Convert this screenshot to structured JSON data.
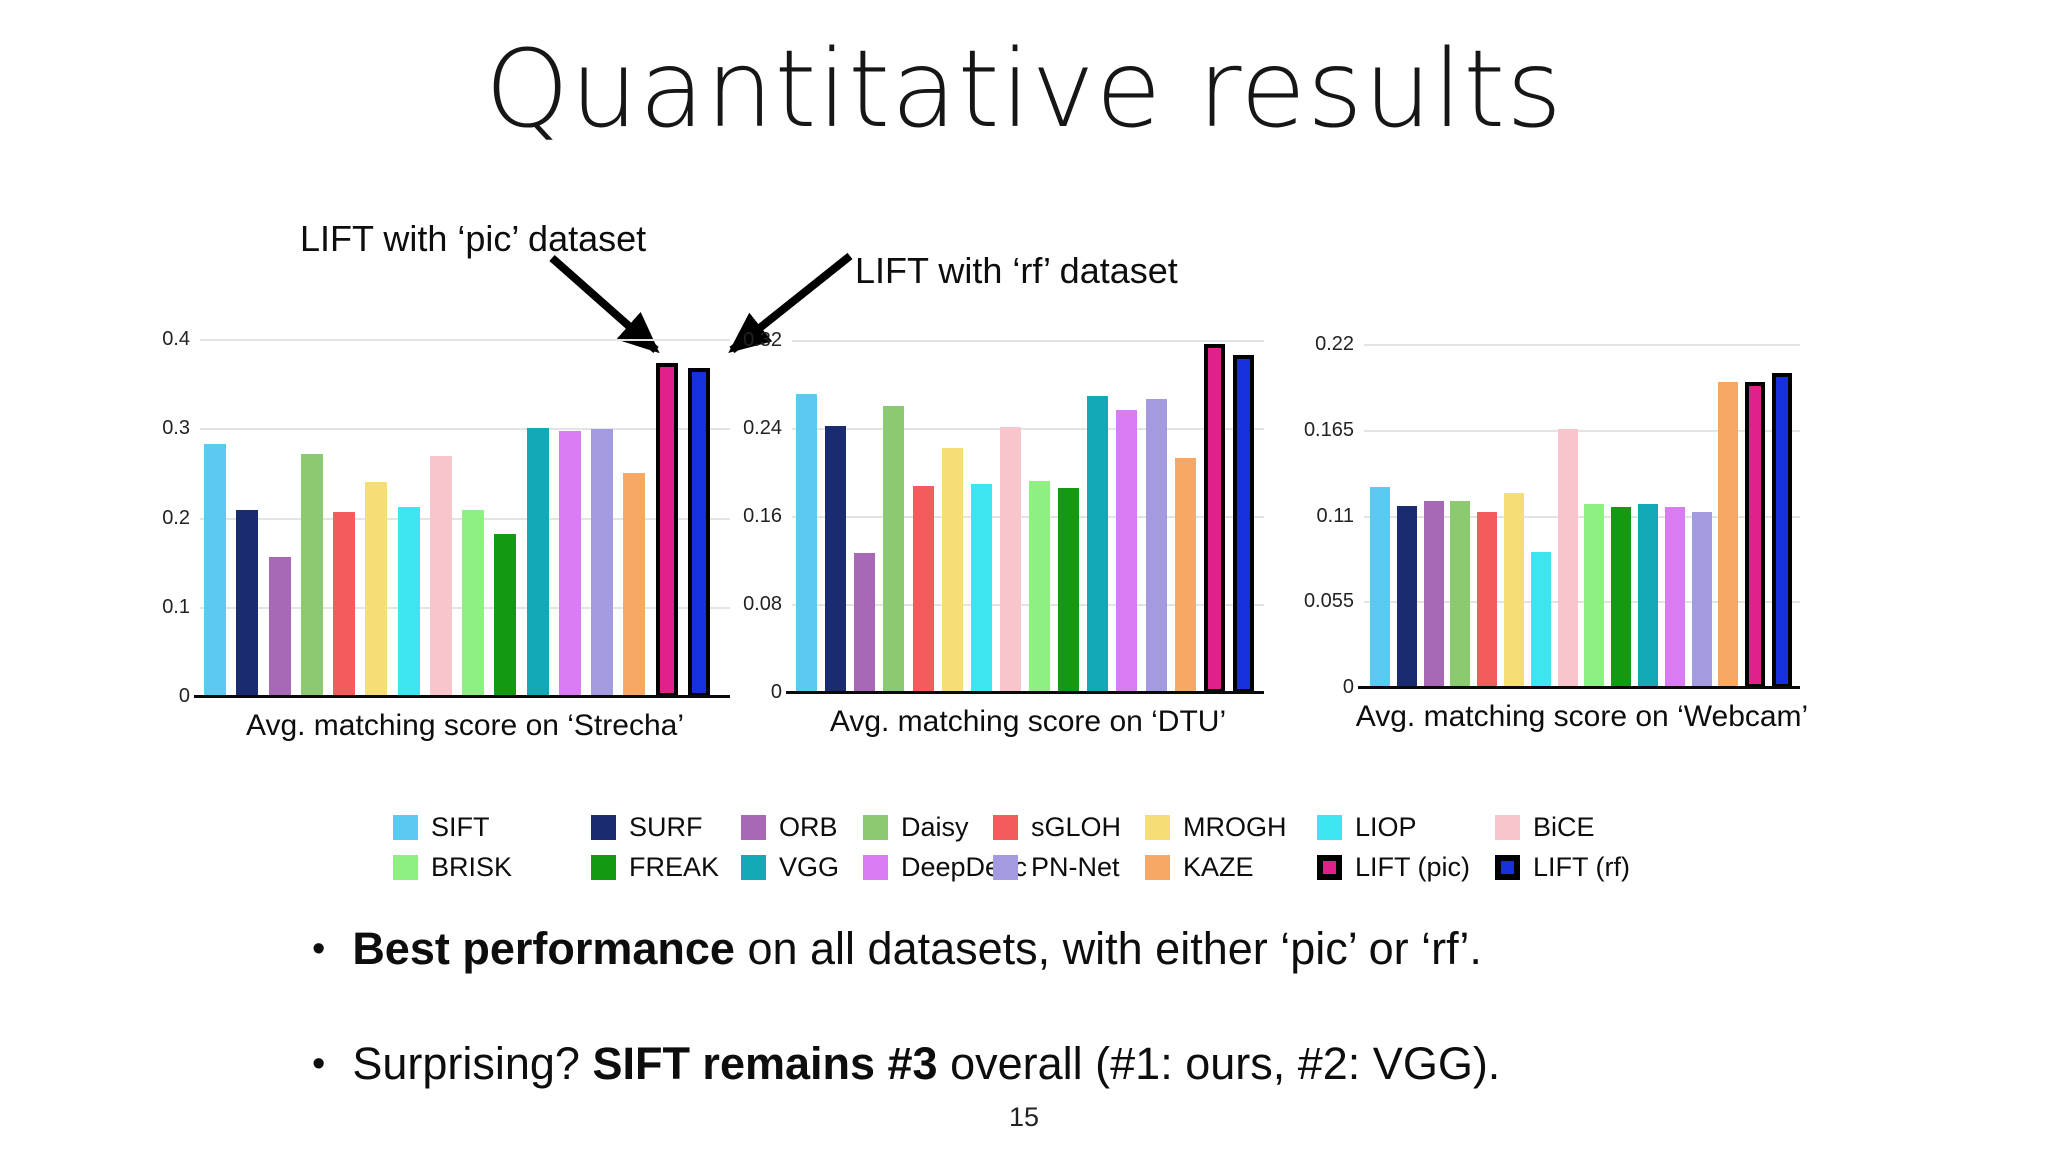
{
  "slide": {
    "title": "Quantitative results",
    "page_number": "15"
  },
  "annotations": {
    "pic": "LIFT with ‘pic’ dataset",
    "rf": "LIFT with ‘rf’ dataset"
  },
  "bullets": [
    {
      "segments": [
        {
          "text": "Best performance",
          "bold": true
        },
        {
          "text": " on all datasets, with either ‘pic’ or ‘rf’.",
          "bold": false
        }
      ]
    },
    {
      "segments": [
        {
          "text": "Surprising? ",
          "bold": false
        },
        {
          "text": "SIFT remains #3",
          "bold": true
        },
        {
          "text": " overall (#1: ours, #2: VGG).",
          "bold": false
        }
      ]
    }
  ],
  "legend": {
    "items": [
      {
        "label": "SIFT",
        "color": "#5BC9F0",
        "outlined": false
      },
      {
        "label": "SURF",
        "color": "#1B2B70",
        "outlined": false
      },
      {
        "label": "ORB",
        "color": "#A769B5",
        "outlined": false
      },
      {
        "label": "Daisy",
        "color": "#8CCA72",
        "outlined": false
      },
      {
        "label": "sGLOH",
        "color": "#F25C5C",
        "outlined": false
      },
      {
        "label": "MROGH",
        "color": "#F6DE77",
        "outlined": false
      },
      {
        "label": "LIOP",
        "color": "#3BE6F2",
        "outlined": false
      },
      {
        "label": "BiCE",
        "color": "#F9C5CD",
        "outlined": false
      },
      {
        "label": "BRISK",
        "color": "#8EF083",
        "outlined": false
      },
      {
        "label": "FREAK",
        "color": "#139A13",
        "outlined": false
      },
      {
        "label": "VGG",
        "color": "#13A8B5",
        "outlined": false
      },
      {
        "label": "DeepDesc",
        "color": "#D97CF3",
        "outlined": false
      },
      {
        "label": "PN-Net",
        "color": "#A29BE0",
        "outlined": false
      },
      {
        "label": "KAZE",
        "color": "#F8A865",
        "outlined": false
      },
      {
        "label": "LIFT (pic)",
        "color": "#E0218A",
        "outlined": true
      },
      {
        "label": "LIFT (rf)",
        "color": "#1530DC",
        "outlined": true
      }
    ]
  },
  "chart_data": [
    {
      "type": "bar",
      "title": "Avg. matching score on ‘Strecha’",
      "categories": [
        "SIFT",
        "SURF",
        "ORB",
        "Daisy",
        "sGLOH",
        "MROGH",
        "LIOP",
        "BiCE",
        "BRISK",
        "FREAK",
        "VGG",
        "DeepDesc",
        "PN-Net",
        "KAZE",
        "LIFT (pic)",
        "LIFT (rf)"
      ],
      "values": [
        0.284,
        0.209,
        0.157,
        0.272,
        0.207,
        0.241,
        0.213,
        0.27,
        0.209,
        0.183,
        0.301,
        0.298,
        0.3,
        0.251,
        0.374,
        0.369
      ],
      "ylim": [
        0,
        0.4
      ],
      "ytick_values": [
        0,
        0.1,
        0.2,
        0.3,
        0.4
      ],
      "ytick_labels": [
        "0",
        "0.1",
        "0.2",
        "0.3",
        "0.4"
      ],
      "grid": true,
      "legend_position": "below-shared"
    },
    {
      "type": "bar",
      "title": "Avg. matching score on ‘DTU’",
      "categories": [
        "SIFT",
        "SURF",
        "ORB",
        "Daisy",
        "sGLOH",
        "MROGH",
        "LIOP",
        "BiCE",
        "BRISK",
        "FREAK",
        "VGG",
        "DeepDesc",
        "PN-Net",
        "KAZE",
        "LIFT (pic)",
        "LIFT (rf)"
      ],
      "values": [
        0.272,
        0.243,
        0.127,
        0.261,
        0.188,
        0.223,
        0.19,
        0.242,
        0.193,
        0.186,
        0.27,
        0.257,
        0.267,
        0.214,
        0.317,
        0.307
      ],
      "ylim": [
        0,
        0.32
      ],
      "ytick_values": [
        0,
        0.08,
        0.16,
        0.24,
        0.32
      ],
      "ytick_labels": [
        "0",
        "0.08",
        "0.16",
        "0.24",
        "0.32"
      ],
      "grid": true,
      "legend_position": "below-shared"
    },
    {
      "type": "bar",
      "title": "Avg. matching score on ‘Webcam’",
      "categories": [
        "SIFT",
        "SURF",
        "ORB",
        "Daisy",
        "sGLOH",
        "MROGH",
        "LIOP",
        "BiCE",
        "BRISK",
        "FREAK",
        "VGG",
        "DeepDesc",
        "PN-Net",
        "KAZE",
        "LIFT (pic)",
        "LIFT (rf)"
      ],
      "values": [
        0.129,
        0.117,
        0.12,
        0.12,
        0.113,
        0.125,
        0.087,
        0.166,
        0.118,
        0.116,
        0.118,
        0.116,
        0.113,
        0.196,
        0.196,
        0.202
      ],
      "ylim": [
        0,
        0.22
      ],
      "ytick_values": [
        0,
        0.055,
        0.11,
        0.165,
        0.22
      ],
      "ytick_labels": [
        "0",
        "0.055",
        "0.11",
        "0.165",
        "0.22"
      ],
      "grid": true,
      "legend_position": "below-shared"
    }
  ]
}
